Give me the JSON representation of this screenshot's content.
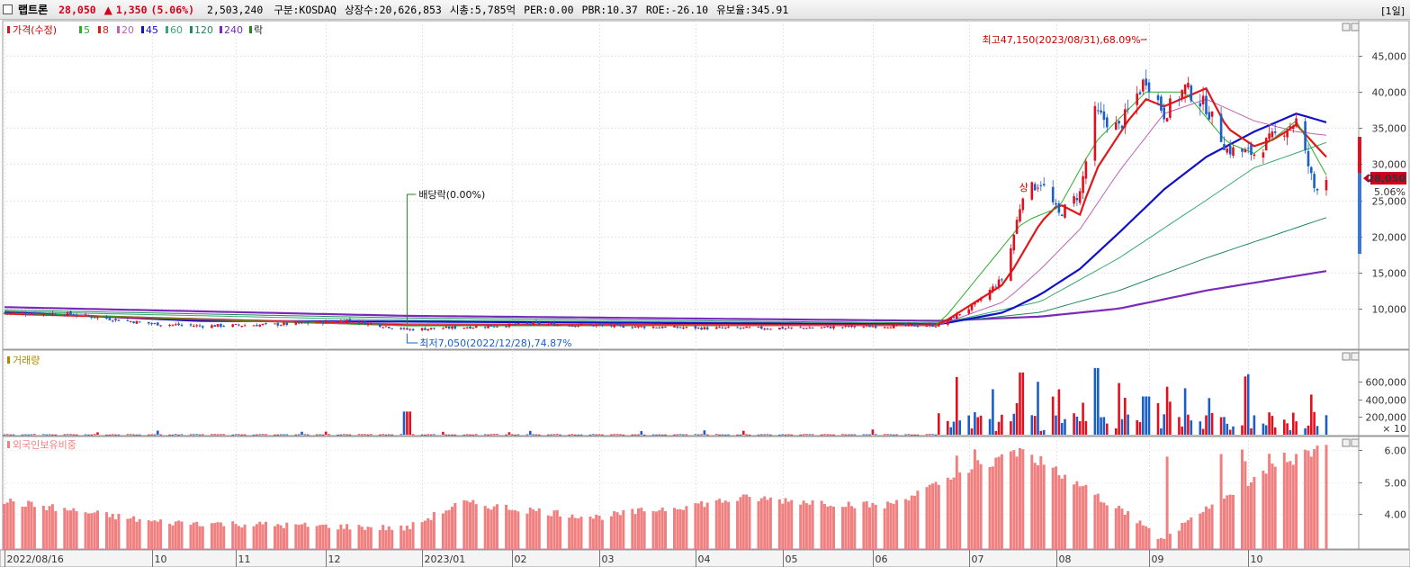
{
  "header": {
    "name": "랩트론",
    "price": "28,050",
    "change_arrow": "▲",
    "change": "1,350",
    "change_pct": "(5.06%)",
    "volume": "2,503,240",
    "market": "구분:KOSDAQ",
    "listed_shares": "상장수:20,626,853",
    "market_cap": "시총:5,785억",
    "per": "PER:0.00",
    "pbr": "PBR:10.37",
    "roe": "ROE:-26.10",
    "reserve": "유보율:345.91",
    "period": "[1일]"
  },
  "legend": {
    "price": "가격(수정)",
    "ma": [
      "5",
      "8",
      "20",
      "45",
      "60",
      "120",
      "240"
    ],
    "ex": "락",
    "volume": "거래량",
    "foreign": "외국인보유비중"
  },
  "colors": {
    "up": "#e0101e",
    "down": "#1a5fc8",
    "ma5": "#28b028",
    "ma8": "#e01818",
    "ma20": "#c060b8",
    "ma45": "#1010c8",
    "ma60": "#38a870",
    "ma120": "#208860",
    "ma240": "#7a2ab8",
    "foreign": "#f08080",
    "vol_label": "#b08800"
  },
  "annotations": {
    "high": "최고47,150(2023/08/31),68.09%",
    "low": "최저7,050(2022/12/28),74.87%",
    "dividend": "배당락(0.00%)",
    "up_mark": "상",
    "last_price": "28,050",
    "last_pct": "5.06%"
  },
  "chart_data": [
    {
      "type": "candlestick",
      "title": "가격(수정)",
      "x_tick_labels": [
        "2022/08/16",
        "10",
        "11",
        "12",
        "2023/01",
        "02",
        "03",
        "04",
        "05",
        "06",
        "07",
        "08",
        "09",
        "10"
      ],
      "y_tick_labels": [
        "10,000",
        "15,000",
        "20,000",
        "25,000",
        "30,000",
        "35,000",
        "40,000",
        "45,000"
      ],
      "ylim": [
        5000,
        48000
      ],
      "x_date_range": [
        "2022-08-16",
        "2023-10-30"
      ],
      "close_path": [
        {
          "d": "2022-08-16",
          "v": 9400
        },
        {
          "d": "2022-09-05",
          "v": 9300
        },
        {
          "d": "2022-09-22",
          "v": 8500
        },
        {
          "d": "2022-10-04",
          "v": 7900
        },
        {
          "d": "2022-10-20",
          "v": 7600
        },
        {
          "d": "2022-11-05",
          "v": 7700
        },
        {
          "d": "2022-11-22",
          "v": 7900
        },
        {
          "d": "2022-12-08",
          "v": 8400
        },
        {
          "d": "2022-12-28",
          "v": 7100
        },
        {
          "d": "2023-01-15",
          "v": 7400
        },
        {
          "d": "2023-02-08",
          "v": 7900
        },
        {
          "d": "2023-03-05",
          "v": 7600
        },
        {
          "d": "2023-04-05",
          "v": 7300
        },
        {
          "d": "2023-05-05",
          "v": 7300
        },
        {
          "d": "2023-06-05",
          "v": 7600
        },
        {
          "d": "2023-06-23",
          "v": 7700
        },
        {
          "d": "2023-07-05",
          "v": 10500
        },
        {
          "d": "2023-07-15",
          "v": 14500
        },
        {
          "d": "2023-07-21",
          "v": 26000
        },
        {
          "d": "2023-07-27",
          "v": 27500
        },
        {
          "d": "2023-08-02",
          "v": 23000
        },
        {
          "d": "2023-08-09",
          "v": 26000
        },
        {
          "d": "2023-08-14",
          "v": 37000
        },
        {
          "d": "2023-08-22",
          "v": 35000
        },
        {
          "d": "2023-08-31",
          "v": 42000
        },
        {
          "d": "2023-09-06",
          "v": 37000
        },
        {
          "d": "2023-09-13",
          "v": 40500
        },
        {
          "d": "2023-09-20",
          "v": 38000
        },
        {
          "d": "2023-09-27",
          "v": 32000
        },
        {
          "d": "2023-10-06",
          "v": 31500
        },
        {
          "d": "2023-10-13",
          "v": 34000
        },
        {
          "d": "2023-10-20",
          "v": 36000
        },
        {
          "d": "2023-10-26",
          "v": 26700
        },
        {
          "d": "2023-10-30",
          "v": 28050
        }
      ],
      "series": [
        {
          "name": "5",
          "points": [
            {
              "d": "2022-08-16",
              "v": 9400
            },
            {
              "d": "2022-12-28",
              "v": 7600
            },
            {
              "d": "2023-06-23",
              "v": 7700
            },
            {
              "d": "2023-07-21",
              "v": 22000
            },
            {
              "d": "2023-08-02",
              "v": 24000
            },
            {
              "d": "2023-08-14",
              "v": 33000
            },
            {
              "d": "2023-08-31",
              "v": 40000
            },
            {
              "d": "2023-09-13",
              "v": 40000
            },
            {
              "d": "2023-09-27",
              "v": 33000
            },
            {
              "d": "2023-10-06",
              "v": 31500
            },
            {
              "d": "2023-10-20",
              "v": 36000
            },
            {
              "d": "2023-10-30",
              "v": 28500
            }
          ]
        },
        {
          "name": "8",
          "points": [
            {
              "d": "2022-08-16",
              "v": 9300
            },
            {
              "d": "2022-12-28",
              "v": 7700
            },
            {
              "d": "2023-06-23",
              "v": 7700
            },
            {
              "d": "2023-07-15",
              "v": 13500
            },
            {
              "d": "2023-07-27",
              "v": 22000
            },
            {
              "d": "2023-08-02",
              "v": 24500
            },
            {
              "d": "2023-08-09",
              "v": 23000
            },
            {
              "d": "2023-08-14",
              "v": 29000
            },
            {
              "d": "2023-08-25",
              "v": 36000
            },
            {
              "d": "2023-08-31",
              "v": 39000
            },
            {
              "d": "2023-09-06",
              "v": 38000
            },
            {
              "d": "2023-09-20",
              "v": 40500
            },
            {
              "d": "2023-09-27",
              "v": 35000
            },
            {
              "d": "2023-10-06",
              "v": 32500
            },
            {
              "d": "2023-10-13",
              "v": 33500
            },
            {
              "d": "2023-10-20",
              "v": 35500
            },
            {
              "d": "2023-10-30",
              "v": 31000
            }
          ]
        },
        {
          "name": "20",
          "points": [
            {
              "d": "2022-08-16",
              "v": 9300
            },
            {
              "d": "2022-12-28",
              "v": 7900
            },
            {
              "d": "2023-06-23",
              "v": 7700
            },
            {
              "d": "2023-07-15",
              "v": 11000
            },
            {
              "d": "2023-07-27",
              "v": 15500
            },
            {
              "d": "2023-08-09",
              "v": 21000
            },
            {
              "d": "2023-08-22",
              "v": 29000
            },
            {
              "d": "2023-09-06",
              "v": 37000
            },
            {
              "d": "2023-09-20",
              "v": 39000
            },
            {
              "d": "2023-10-06",
              "v": 36000
            },
            {
              "d": "2023-10-20",
              "v": 34500
            },
            {
              "d": "2023-10-30",
              "v": 34000
            }
          ]
        },
        {
          "name": "45",
          "points": [
            {
              "d": "2022-08-16",
              "v": 9500
            },
            {
              "d": "2022-10-20",
              "v": 8300
            },
            {
              "d": "2022-12-28",
              "v": 8200
            },
            {
              "d": "2023-06-23",
              "v": 7800
            },
            {
              "d": "2023-07-15",
              "v": 9500
            },
            {
              "d": "2023-07-27",
              "v": 12000
            },
            {
              "d": "2023-08-09",
              "v": 15500
            },
            {
              "d": "2023-08-22",
              "v": 20500
            },
            {
              "d": "2023-09-06",
              "v": 26500
            },
            {
              "d": "2023-09-20",
              "v": 31000
            },
            {
              "d": "2023-10-06",
              "v": 34500
            },
            {
              "d": "2023-10-20",
              "v": 37000
            },
            {
              "d": "2023-10-30",
              "v": 35800
            }
          ]
        },
        {
          "name": "60",
          "points": [
            {
              "d": "2022-08-16",
              "v": 9600
            },
            {
              "d": "2022-12-28",
              "v": 8400
            },
            {
              "d": "2023-06-23",
              "v": 7900
            },
            {
              "d": "2023-07-27",
              "v": 11000
            },
            {
              "d": "2023-08-22",
              "v": 17000
            },
            {
              "d": "2023-09-20",
              "v": 25000
            },
            {
              "d": "2023-10-06",
              "v": 29500
            },
            {
              "d": "2023-10-30",
              "v": 33000
            }
          ]
        },
        {
          "name": "120",
          "points": [
            {
              "d": "2022-08-16",
              "v": 9800
            },
            {
              "d": "2022-12-28",
              "v": 8700
            },
            {
              "d": "2023-06-23",
              "v": 8000
            },
            {
              "d": "2023-07-27",
              "v": 9500
            },
            {
              "d": "2023-08-22",
              "v": 12500
            },
            {
              "d": "2023-09-20",
              "v": 17000
            },
            {
              "d": "2023-10-30",
              "v": 22600
            }
          ]
        },
        {
          "name": "240",
          "points": [
            {
              "d": "2022-08-16",
              "v": 10200
            },
            {
              "d": "2022-12-28",
              "v": 9000
            },
            {
              "d": "2023-06-23",
              "v": 8300
            },
            {
              "d": "2023-07-27",
              "v": 8900
            },
            {
              "d": "2023-08-22",
              "v": 10000
            },
            {
              "d": "2023-09-20",
              "v": 12500
            },
            {
              "d": "2023-10-30",
              "v": 15200
            }
          ]
        }
      ]
    },
    {
      "type": "bar",
      "title": "거래량",
      "unit": "× 10",
      "y_tick_labels": [
        "200,000",
        "400,000",
        "600,000"
      ],
      "ylim": [
        0,
        800000
      ],
      "values": [
        {
          "d": "2022-12-28",
          "v": 260000
        },
        {
          "d": "2023-07-21",
          "v": 700000
        },
        {
          "d": "2023-08-14",
          "v": 750000
        },
        {
          "d": "2023-08-31",
          "v": 430000
        },
        {
          "d": "2023-10-30",
          "v": 220000
        }
      ]
    },
    {
      "type": "bar",
      "title": "외국인보유비중",
      "y_tick_labels": [
        "4.00",
        "5.00",
        "6.00"
      ],
      "ylim": [
        2.9,
        6.2
      ],
      "values": [
        {
          "d": "2022-08-16",
          "v": 4.4
        },
        {
          "d": "2022-10-05",
          "v": 3.75
        },
        {
          "d": "2022-12-28",
          "v": 3.55
        },
        {
          "d": "2023-01-15",
          "v": 4.35
        },
        {
          "d": "2023-03-01",
          "v": 3.9
        },
        {
          "d": "2023-04-20",
          "v": 4.5
        },
        {
          "d": "2023-06-05",
          "v": 4.25
        },
        {
          "d": "2023-06-25",
          "v": 5.0
        },
        {
          "d": "2023-07-20",
          "v": 6.0
        },
        {
          "d": "2023-08-25",
          "v": 4.0
        },
        {
          "d": "2023-09-05",
          "v": 3.2
        },
        {
          "d": "2023-10-15",
          "v": 5.65
        },
        {
          "d": "2023-10-30",
          "v": 6.05
        }
      ]
    }
  ]
}
